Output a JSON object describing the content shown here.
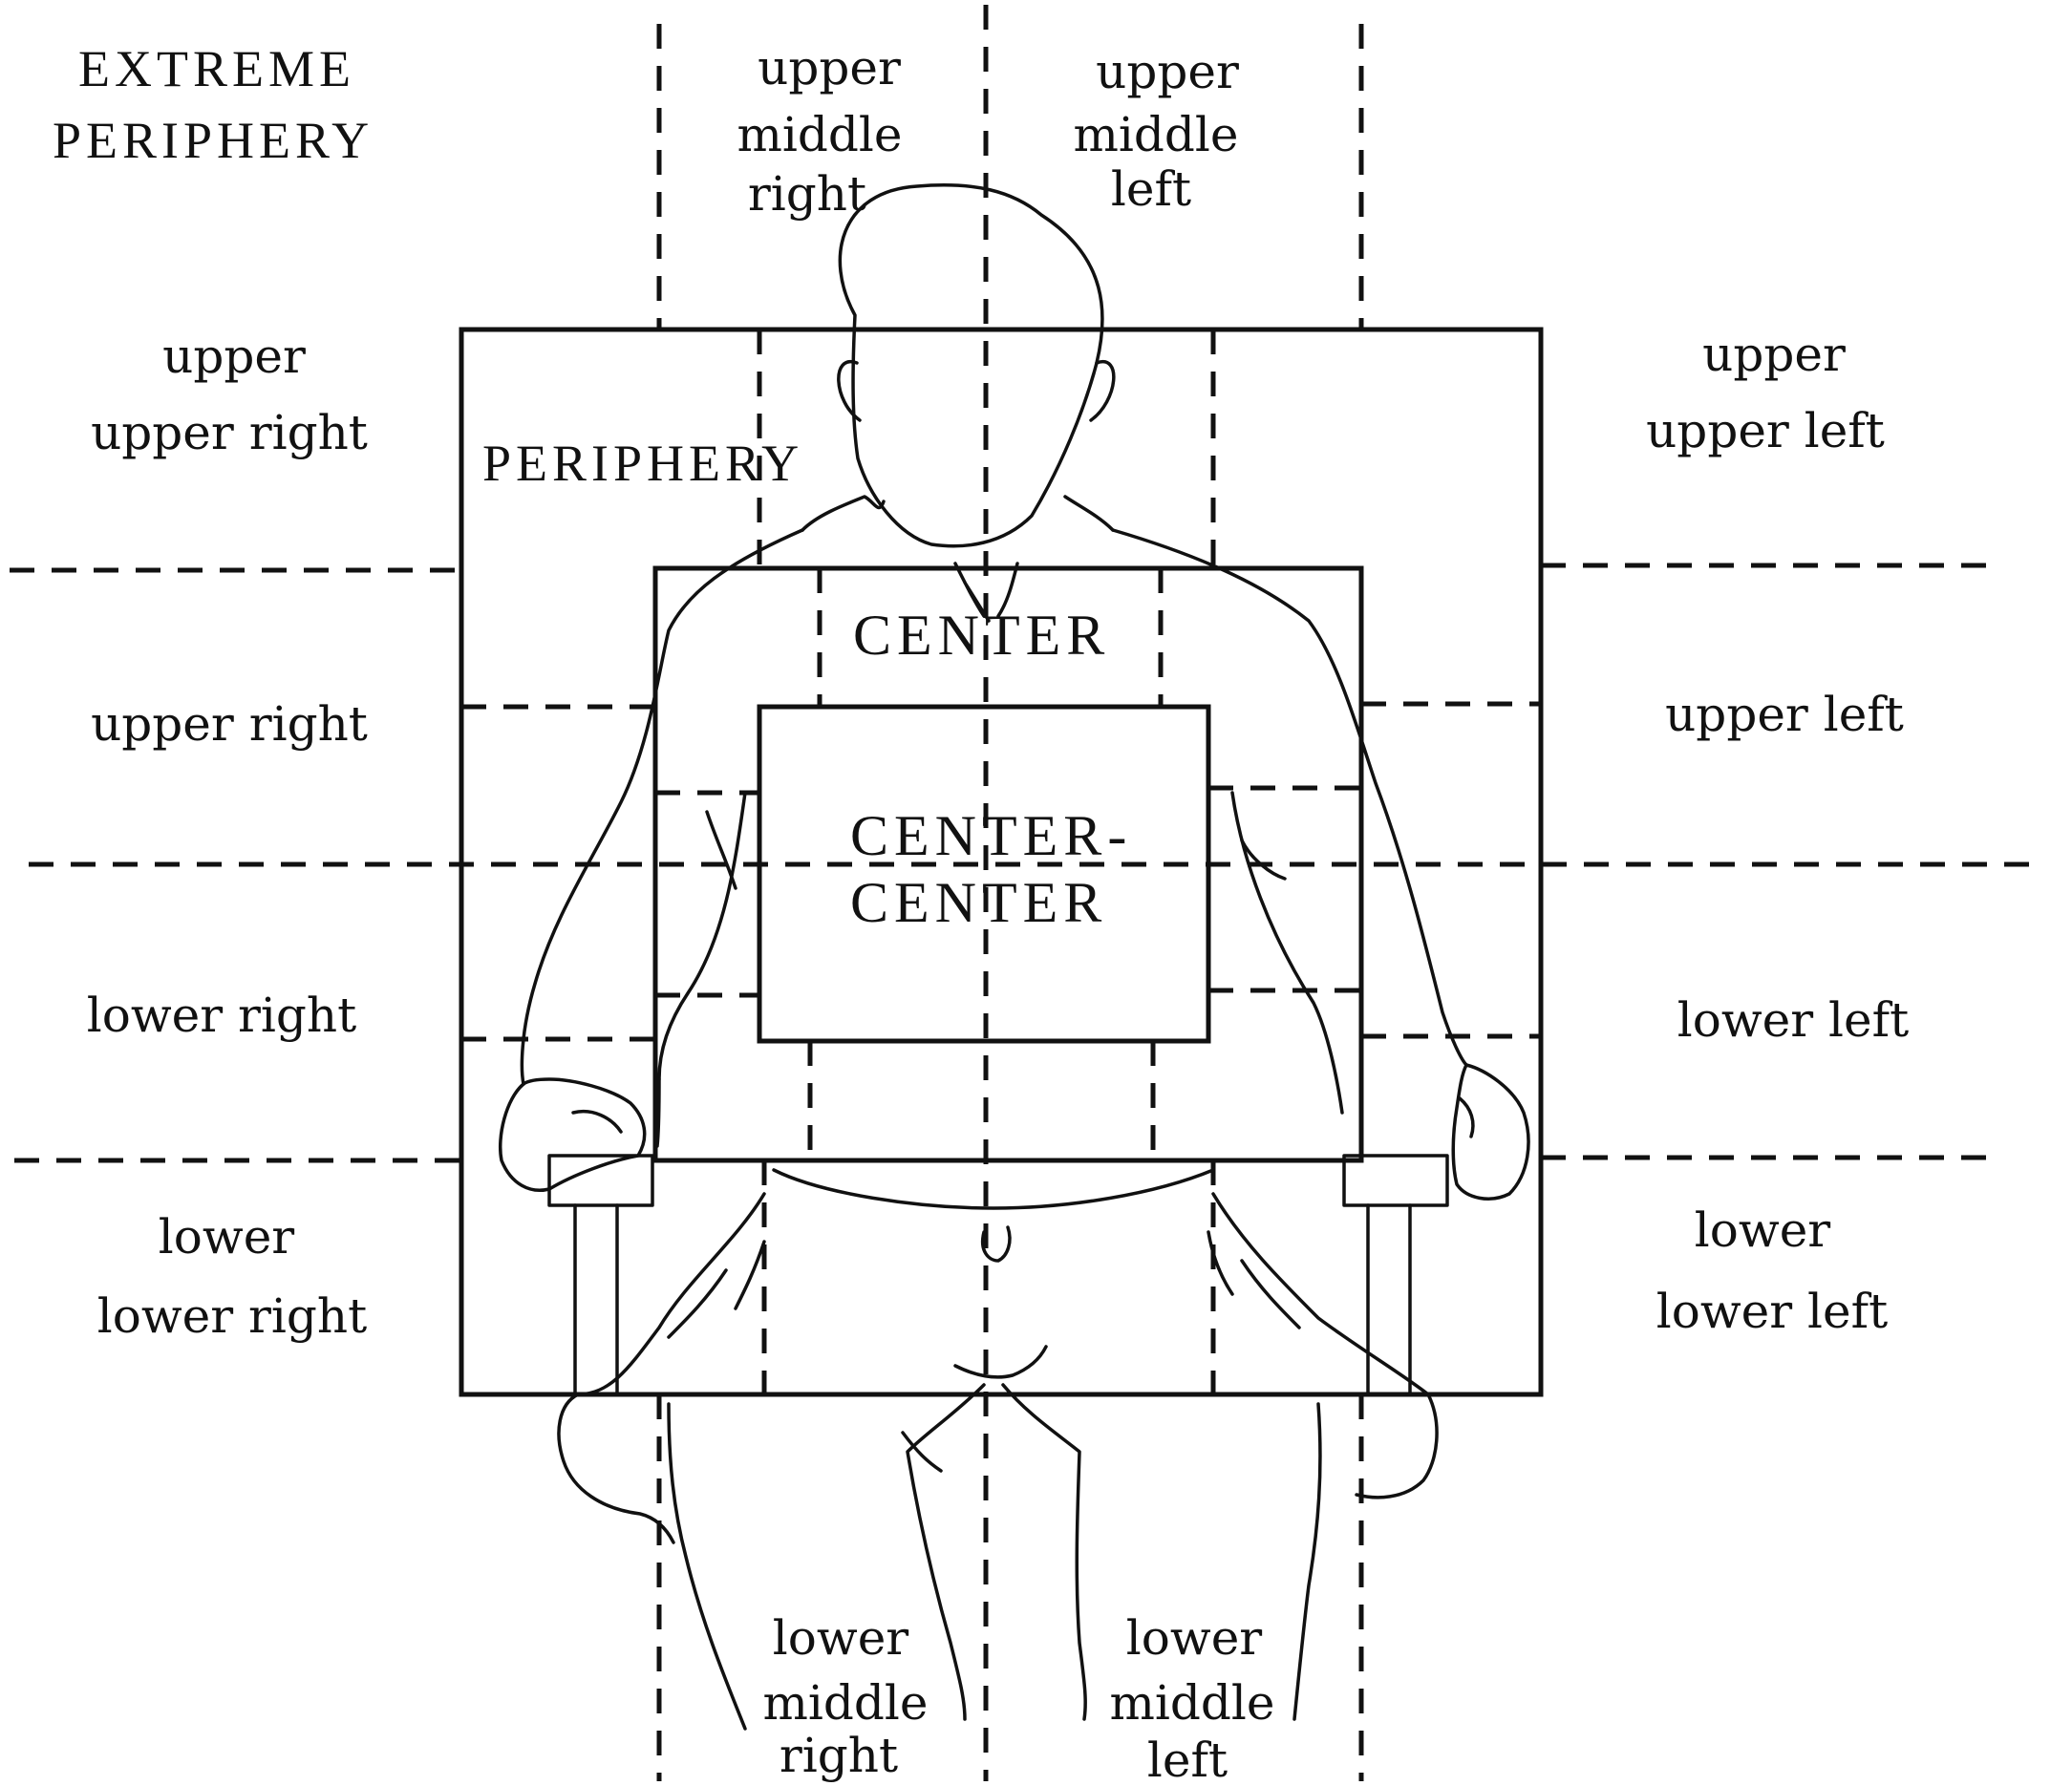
{
  "regions": {
    "extreme_periphery": [
      "EXTREME",
      "PERIPHERY"
    ],
    "periphery": "PERIPHERY",
    "center": "CENTER",
    "center_center": [
      "CENTER-",
      "CENTER"
    ]
  },
  "zones": {
    "upper_middle_right": [
      "upper",
      "middle",
      "right"
    ],
    "upper_middle_left": [
      "upper",
      "middle",
      "left"
    ],
    "upper_upper_right": [
      "upper",
      "upper right"
    ],
    "upper_upper_left": [
      "upper",
      "upper left"
    ],
    "upper_right": "upper right",
    "upper_left": "upper left",
    "lower_right": "lower right",
    "lower_left": "lower left",
    "lower_lower_right": [
      "lower",
      "lower right"
    ],
    "lower_lower_left": [
      "lower",
      "lower left"
    ],
    "lower_middle_right": [
      "lower",
      "middle",
      "right"
    ],
    "lower_middle_left": [
      "lower",
      "middle",
      "left"
    ]
  },
  "figure": {
    "icon": "seated-person-icon",
    "stroke_color": "#111111"
  }
}
